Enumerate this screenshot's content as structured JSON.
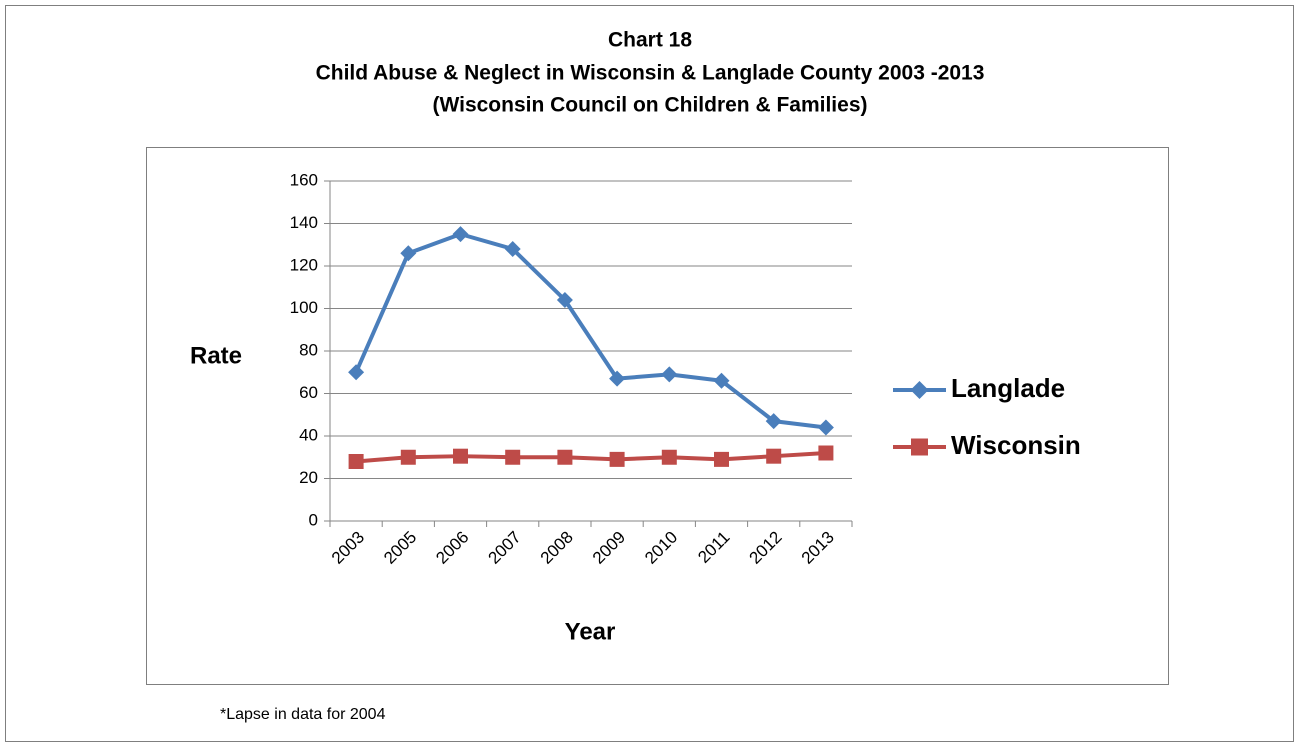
{
  "chart_data": {
    "type": "line",
    "title": "Chart 18",
    "subtitle": "Child Abuse & Neglect in Wisconsin & Langlade County 2003 -2013",
    "source": "(Wisconsin Council on Children & Families)",
    "y_label": "Rate",
    "x_label": "Year",
    "footnote": "*Lapse in data for 2004",
    "categories": [
      "2003",
      "2005",
      "2006",
      "2007",
      "2008",
      "2009",
      "2010",
      "2011",
      "2012",
      "2013"
    ],
    "series": [
      {
        "name": "Langlade",
        "color": "#4a7ebb",
        "marker": "diamond",
        "values": [
          70,
          126,
          135,
          128,
          104,
          67,
          69,
          66,
          47,
          44
        ]
      },
      {
        "name": "Wisconsin",
        "color": "#be4b48",
        "marker": "square",
        "values": [
          28,
          30,
          30.5,
          30,
          30,
          29,
          30,
          29,
          30.5,
          32
        ]
      }
    ],
    "ylim": [
      0,
      160
    ],
    "yticks": [
      0,
      20,
      40,
      60,
      80,
      100,
      120,
      140,
      160
    ],
    "grid": true,
    "legend": "right"
  }
}
